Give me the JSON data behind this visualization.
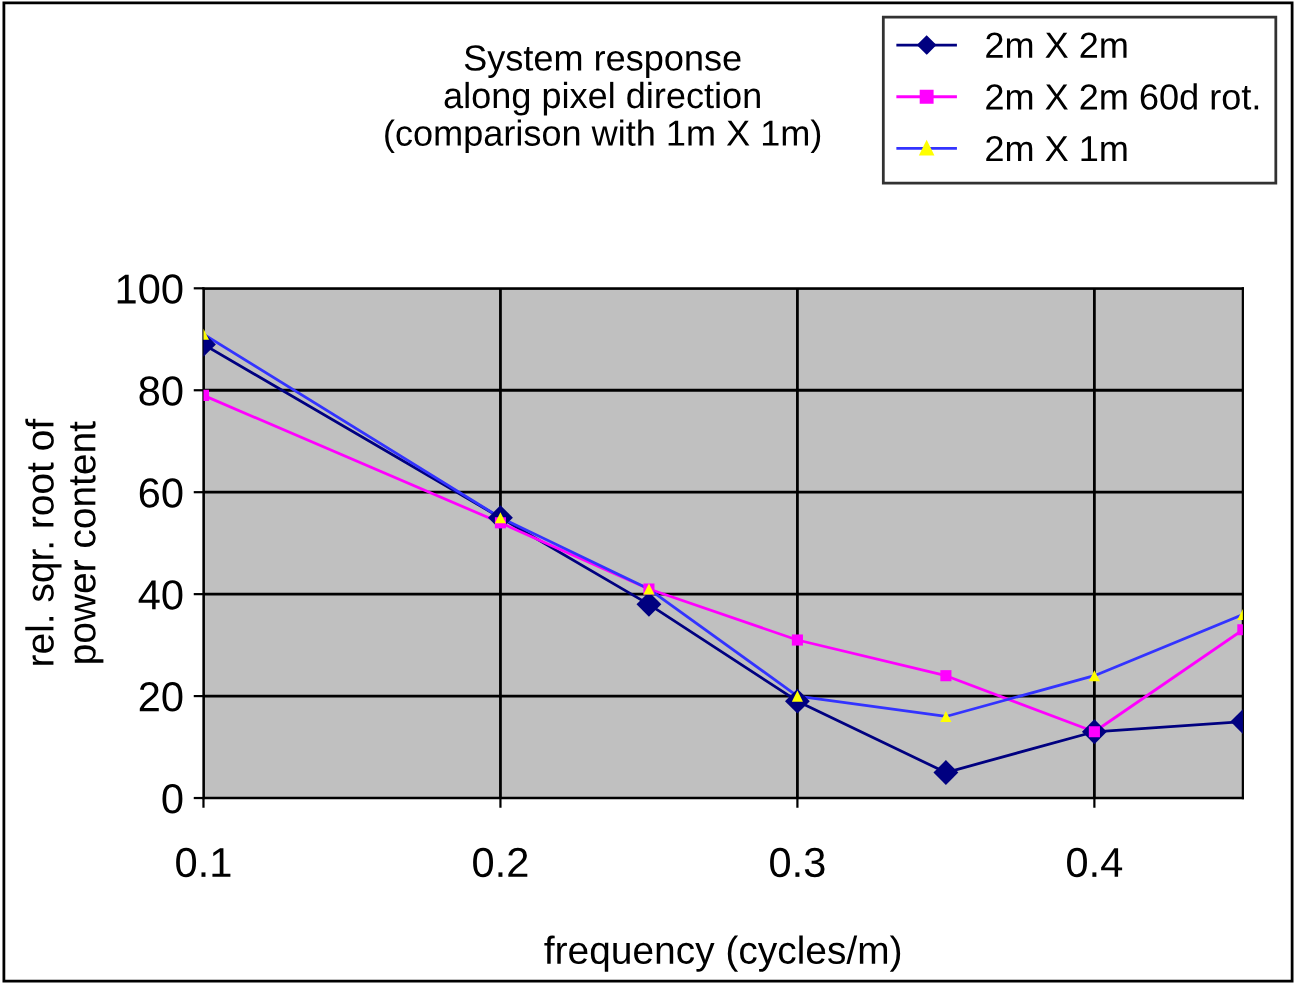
{
  "chart_data": {
    "type": "line",
    "title": "System response\nalong pixel direction\n(comparison with 1m X 1m)",
    "xlabel": "frequency (cycles/m)",
    "ylabel": "rel. sqr. root of\npower content",
    "x": [
      0.1,
      0.2,
      0.25,
      0.3,
      0.35,
      0.4,
      0.45
    ],
    "series": [
      {
        "name": "2m X 2m",
        "color": "#000080",
        "marker": "diamond",
        "values": [
          89,
          55,
          38,
          19,
          5,
          13,
          15
        ]
      },
      {
        "name": "2m X 2m 60d rot.",
        "color": "#ff00ff",
        "marker": "square",
        "values": [
          79,
          54,
          41,
          31,
          24,
          13,
          33
        ]
      },
      {
        "name": "2m X 1m",
        "color": "#3333ff",
        "colors": [
          "#ffff00",
          "#ffff00",
          "#ffff00",
          "#ffff00",
          "#ffff00",
          "#ffff00",
          "#ffff00"
        ],
        "marker": "triangle",
        "values": [
          91,
          55,
          41,
          20,
          16,
          24,
          36
        ]
      }
    ],
    "xlim": [
      0.1,
      0.45
    ],
    "xticks": [
      0.1,
      0.2,
      0.3,
      0.4
    ],
    "ylim": [
      0,
      100
    ],
    "yticks": [
      0,
      20,
      40,
      60,
      80,
      100
    ],
    "grid": true,
    "legend": "top right",
    "line_style": "solid"
  }
}
